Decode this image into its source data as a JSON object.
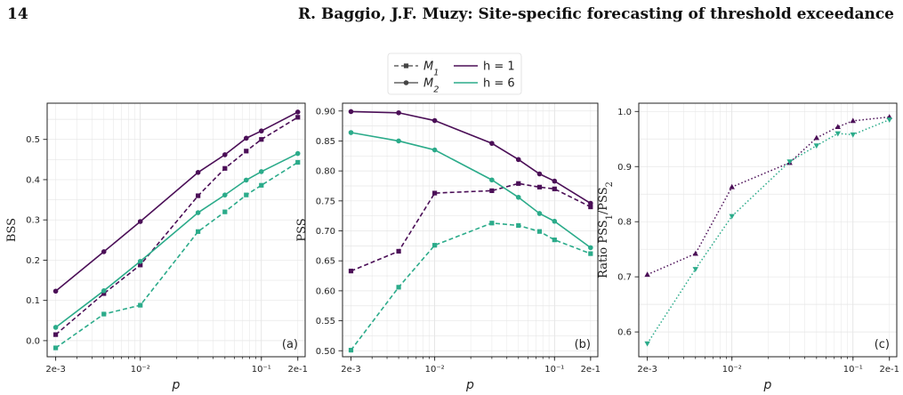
{
  "page": {
    "page_number": "14",
    "running_head": "R. Baggio, J.F. Muzy: Site-specific forecasting of threshold exceedance"
  },
  "legend": {
    "markers": [
      {
        "label": "M₁",
        "style": "dashed",
        "marker": "square"
      },
      {
        "label": "M₂",
        "style": "solid",
        "marker": "circle"
      }
    ],
    "horizons": [
      {
        "label": "h = 1",
        "color": "#4b0f57"
      },
      {
        "label": "h = 6",
        "color": "#2bab8a"
      }
    ]
  },
  "chart_data": [
    {
      "type": "line",
      "panel_label": "(a)",
      "xlabel": "p",
      "ylabel": "BSS",
      "x_scale": "log",
      "xlim": [
        0.0017,
        0.23
      ],
      "ylim": [
        -0.04,
        0.59
      ],
      "x_ticks": [
        0.002,
        0.01,
        0.1,
        0.2
      ],
      "x_tick_labels": [
        "2e-3",
        "10⁻²",
        "10⁻¹",
        "2e-1"
      ],
      "y_ticks": [
        0.0,
        0.1,
        0.2,
        0.3,
        0.4,
        0.5
      ],
      "y_tick_labels": [
        "0.0",
        "0.1",
        "0.2",
        "0.3",
        "0.4",
        "0.5"
      ],
      "grid": true,
      "x": [
        0.002,
        0.005,
        0.01,
        0.03,
        0.05,
        0.075,
        0.1,
        0.2
      ],
      "series": [
        {
          "model": "M2",
          "horizon": "h = 1",
          "color": "#4b0f57",
          "style": "solid",
          "marker": "circle",
          "values": [
            0.123,
            0.221,
            0.296,
            0.418,
            0.462,
            0.503,
            0.521,
            0.568
          ]
        },
        {
          "model": "M1",
          "horizon": "h = 1",
          "color": "#4b0f57",
          "style": "dashed",
          "marker": "square",
          "values": [
            0.015,
            0.117,
            0.188,
            0.36,
            0.428,
            0.471,
            0.5,
            0.555
          ]
        },
        {
          "model": "M2",
          "horizon": "h = 6",
          "color": "#2bab8a",
          "style": "solid",
          "marker": "circle",
          "values": [
            0.033,
            0.124,
            0.197,
            0.318,
            0.362,
            0.399,
            0.42,
            0.465
          ]
        },
        {
          "model": "M1",
          "horizon": "h = 6",
          "color": "#2bab8a",
          "style": "dashed",
          "marker": "square",
          "values": [
            -0.018,
            0.066,
            0.088,
            0.271,
            0.32,
            0.362,
            0.386,
            0.443
          ]
        }
      ]
    },
    {
      "type": "line",
      "panel_label": "(b)",
      "xlabel": "p",
      "ylabel": "PSS",
      "x_scale": "log",
      "xlim": [
        0.0017,
        0.23
      ],
      "ylim": [
        0.49,
        0.913
      ],
      "x_ticks": [
        0.002,
        0.01,
        0.1,
        0.2
      ],
      "x_tick_labels": [
        "2e-3",
        "10⁻²",
        "10⁻¹",
        "2e-1"
      ],
      "y_ticks": [
        0.5,
        0.55,
        0.6,
        0.65,
        0.7,
        0.75,
        0.8,
        0.85,
        0.9
      ],
      "y_tick_labels": [
        "0.50",
        "0.55",
        "0.60",
        "0.65",
        "0.70",
        "0.75",
        "0.80",
        "0.85",
        "0.90"
      ],
      "grid": true,
      "x": [
        0.002,
        0.005,
        0.01,
        0.03,
        0.05,
        0.075,
        0.1,
        0.2
      ],
      "series": [
        {
          "model": "M2",
          "horizon": "h = 1",
          "color": "#4b0f57",
          "style": "solid",
          "marker": "circle",
          "values": [
            0.899,
            0.897,
            0.884,
            0.846,
            0.819,
            0.795,
            0.783,
            0.746
          ]
        },
        {
          "model": "M1",
          "horizon": "h = 1",
          "color": "#4b0f57",
          "style": "dashed",
          "marker": "square",
          "values": [
            0.633,
            0.666,
            0.763,
            0.767,
            0.779,
            0.773,
            0.77,
            0.74
          ]
        },
        {
          "model": "M2",
          "horizon": "h = 6",
          "color": "#2bab8a",
          "style": "solid",
          "marker": "circle",
          "values": [
            0.864,
            0.85,
            0.835,
            0.785,
            0.756,
            0.729,
            0.716,
            0.672
          ]
        },
        {
          "model": "M1",
          "horizon": "h = 6",
          "color": "#2bab8a",
          "style": "dashed",
          "marker": "square",
          "values": [
            0.501,
            0.606,
            0.676,
            0.713,
            0.709,
            0.699,
            0.685,
            0.662
          ]
        }
      ]
    },
    {
      "type": "line",
      "panel_label": "(c)",
      "xlabel": "p",
      "ylabel": "Ratio PSS₁/PSS₂",
      "x_scale": "log",
      "xlim": [
        0.0017,
        0.23
      ],
      "ylim": [
        0.555,
        1.015
      ],
      "x_ticks": [
        0.002,
        0.01,
        0.1,
        0.2
      ],
      "x_tick_labels": [
        "2e-3",
        "10⁻²",
        "10⁻¹",
        "2e-1"
      ],
      "y_ticks": [
        0.6,
        0.7,
        0.8,
        0.9,
        1.0
      ],
      "y_tick_labels": [
        "0.6",
        "0.7",
        "0.8",
        "0.9",
        "1.0"
      ],
      "grid": true,
      "x": [
        0.002,
        0.005,
        0.01,
        0.03,
        0.05,
        0.075,
        0.1,
        0.2
      ],
      "series": [
        {
          "horizon": "h = 1",
          "color": "#4b0f57",
          "style": "dotted",
          "marker": "triangle-up",
          "values": [
            0.704,
            0.742,
            0.863,
            0.907,
            0.952,
            0.972,
            0.983,
            0.99
          ]
        },
        {
          "horizon": "h = 6",
          "color": "#2bab8a",
          "style": "dotted",
          "marker": "triangle-down",
          "values": [
            0.579,
            0.714,
            0.81,
            0.909,
            0.938,
            0.96,
            0.958,
            0.985
          ]
        }
      ]
    }
  ]
}
